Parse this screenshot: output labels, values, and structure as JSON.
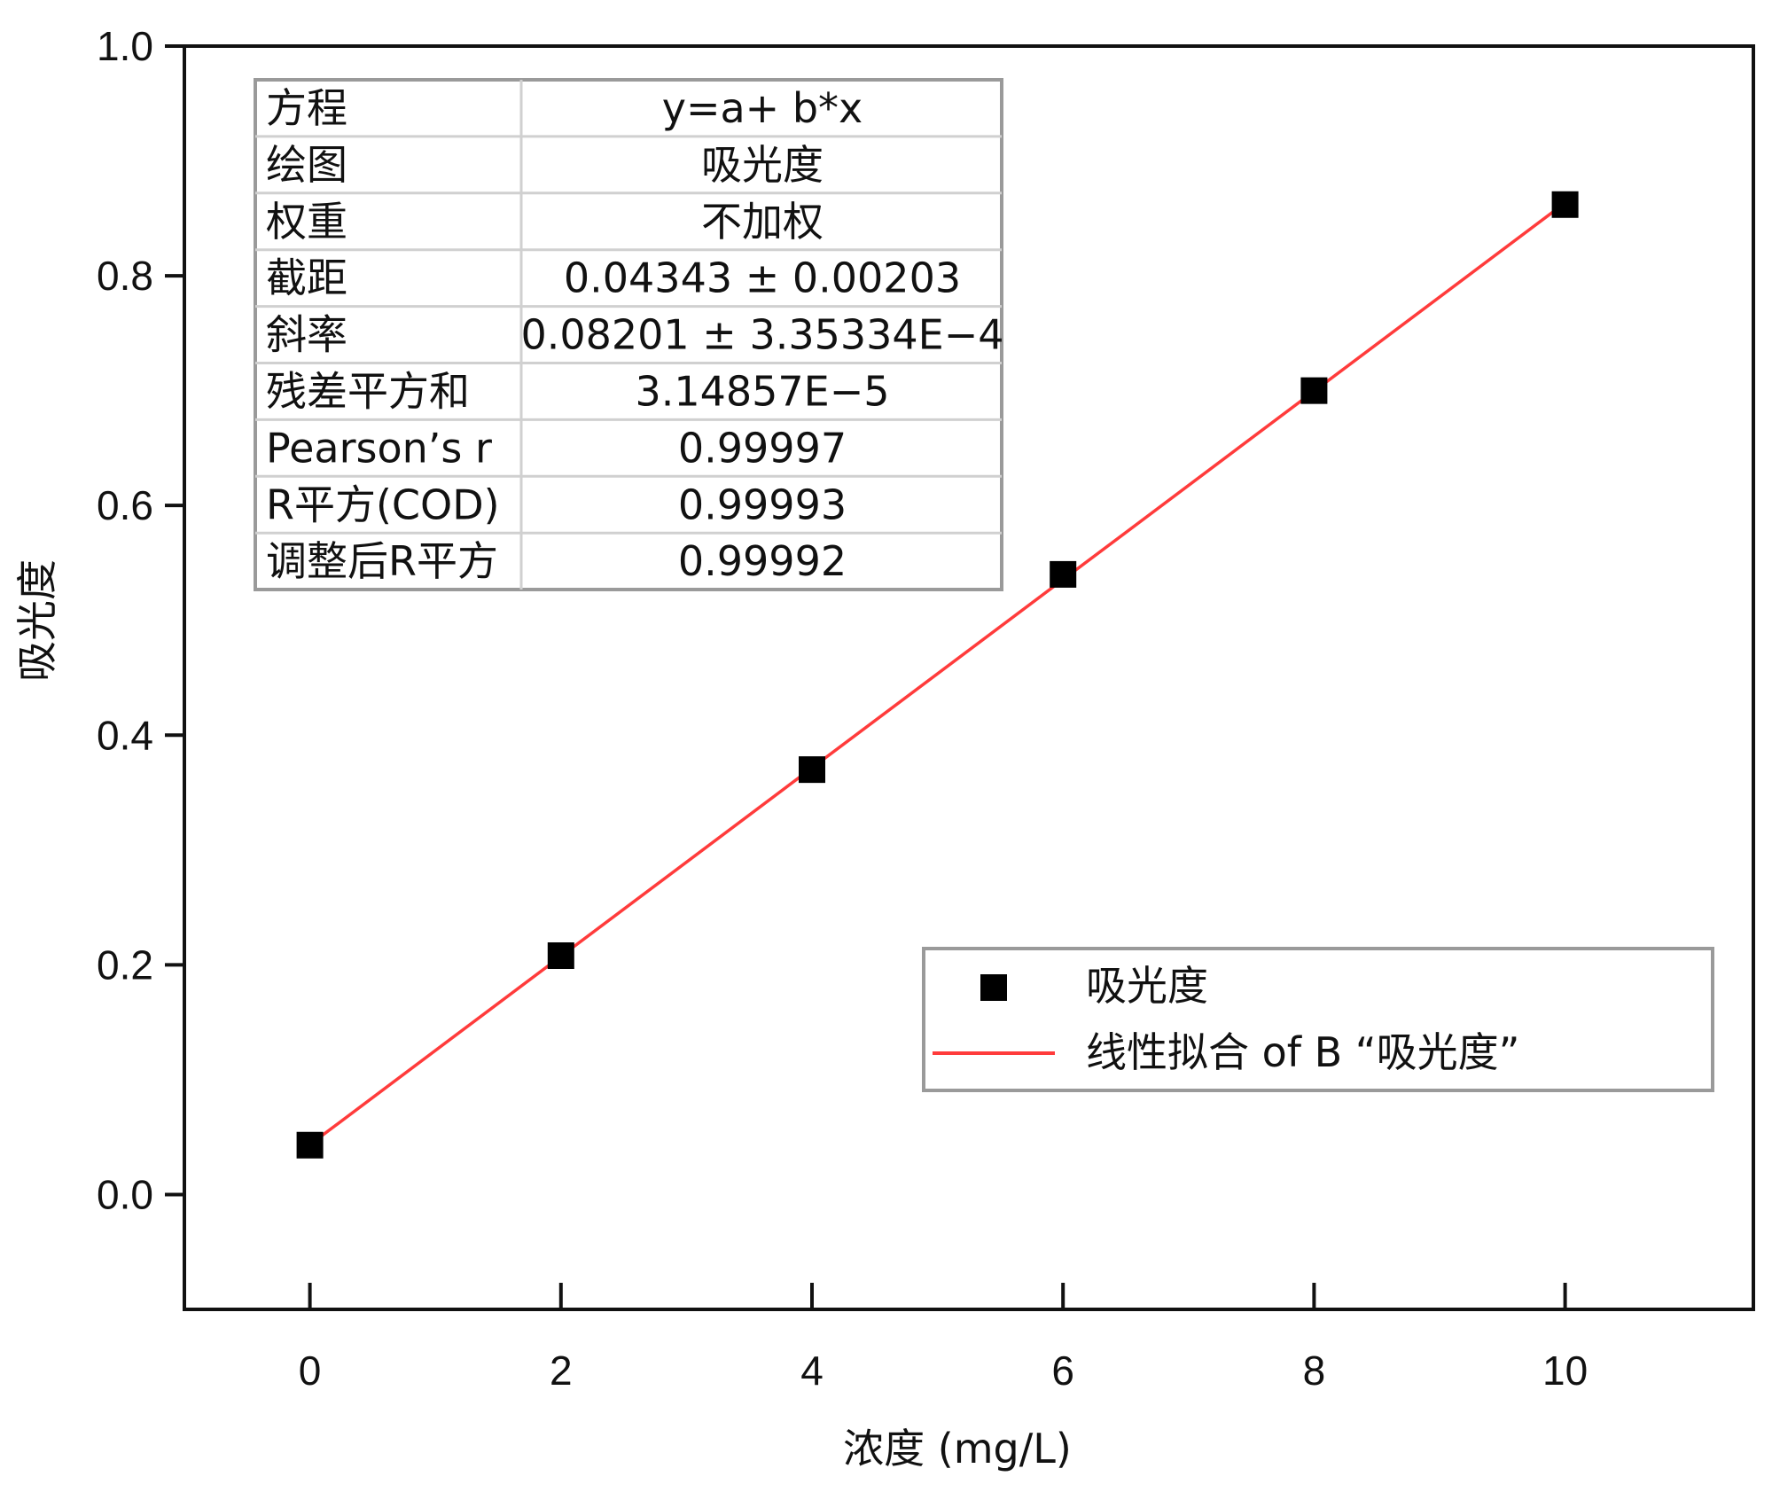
{
  "chart_data": {
    "type": "scatter",
    "xlabel": "浓度 (mg/L)",
    "ylabel": "吸光度",
    "xlim": [
      -1,
      11.5
    ],
    "ylim": [
      -0.1,
      1.0
    ],
    "x_ticks": [
      "0",
      "2",
      "4",
      "6",
      "8",
      "10"
    ],
    "y_ticks": [
      "0.0",
      "0.2",
      "0.4",
      "0.6",
      "0.8",
      "1.0"
    ],
    "grid": false,
    "series": [
      {
        "name": "吸光度",
        "kind": "points",
        "marker": "square",
        "color": "#000000",
        "points": [
          [
            0,
            0.043
          ],
          [
            2,
            0.208
          ],
          [
            4,
            0.37
          ],
          [
            6,
            0.54
          ],
          [
            8,
            0.7
          ],
          [
            10,
            0.862
          ]
        ]
      },
      {
        "name": "线性拟合 of B “吸光度”",
        "kind": "line",
        "color": "#ff3b3b",
        "intercept": 0.04343,
        "slope": 0.08201,
        "x_range": [
          0,
          10
        ]
      }
    ],
    "legend_position": "lower-right",
    "fit_table": {
      "rows": [
        {
          "label": "方程",
          "value": "y=a+ b*x"
        },
        {
          "label": "绘图",
          "value": "吸光度"
        },
        {
          "label": "权重",
          "value": "不加权"
        },
        {
          "label": "截距",
          "value": "0.04343 ± 0.00203"
        },
        {
          "label": "斜率",
          "value": "0.08201 ± 3.35334E−4"
        },
        {
          "label": "残差平方和",
          "value": "3.14857E−5"
        },
        {
          "label": "Pearson’s r",
          "value": "0.99997"
        },
        {
          "label": "R平方(COD)",
          "value": "0.99993"
        },
        {
          "label": "调整后R平方",
          "value": "0.99992"
        }
      ]
    }
  }
}
